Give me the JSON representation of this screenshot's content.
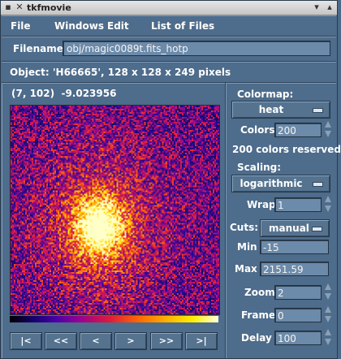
{
  "window": {
    "title": "tkfmovie",
    "menu_icon": "window-menu-icon",
    "close_icon": "close-icon",
    "right_icons": [
      "minimize-icon",
      "maximize-icon"
    ]
  },
  "menu": [
    "File",
    "Windows",
    "Edit",
    "List of Files"
  ],
  "filename": {
    "label": "Filename:",
    "value": "obj/magic0089t.fits_hotp"
  },
  "object_info": "Object: 'H66665', 128 x 128 x 249 pixels",
  "cursor_readout": {
    "position": "(7, 102)",
    "value": "-9.023956"
  },
  "nav_buttons": [
    "|<",
    "<<",
    "<",
    ">",
    ">>",
    ">|"
  ],
  "controls": {
    "colormap_label": "Colormap:",
    "colormap_value": "heat",
    "colors_label": "Colors",
    "colors_value": "200",
    "colors_reserved": "200 colors reserved",
    "scaling_label": "Scaling:",
    "scaling_value": "logarithmic",
    "wrap_label": "Wrap",
    "wrap_value": "1",
    "cuts_label": "Cuts:",
    "cuts_value": "manual",
    "min_label": "Min",
    "min_value": "-15",
    "max_label": "Max",
    "max_value": "2151.59",
    "zoom_label": "Zoom",
    "zoom_value": "2",
    "frame_label": "Frame",
    "frame_value": "0",
    "delay_label": "Delay",
    "delay_value": "100"
  },
  "colors": {
    "background": "#4e6c8b",
    "field": "#6c8aa9",
    "image_bg": "#10104a"
  }
}
